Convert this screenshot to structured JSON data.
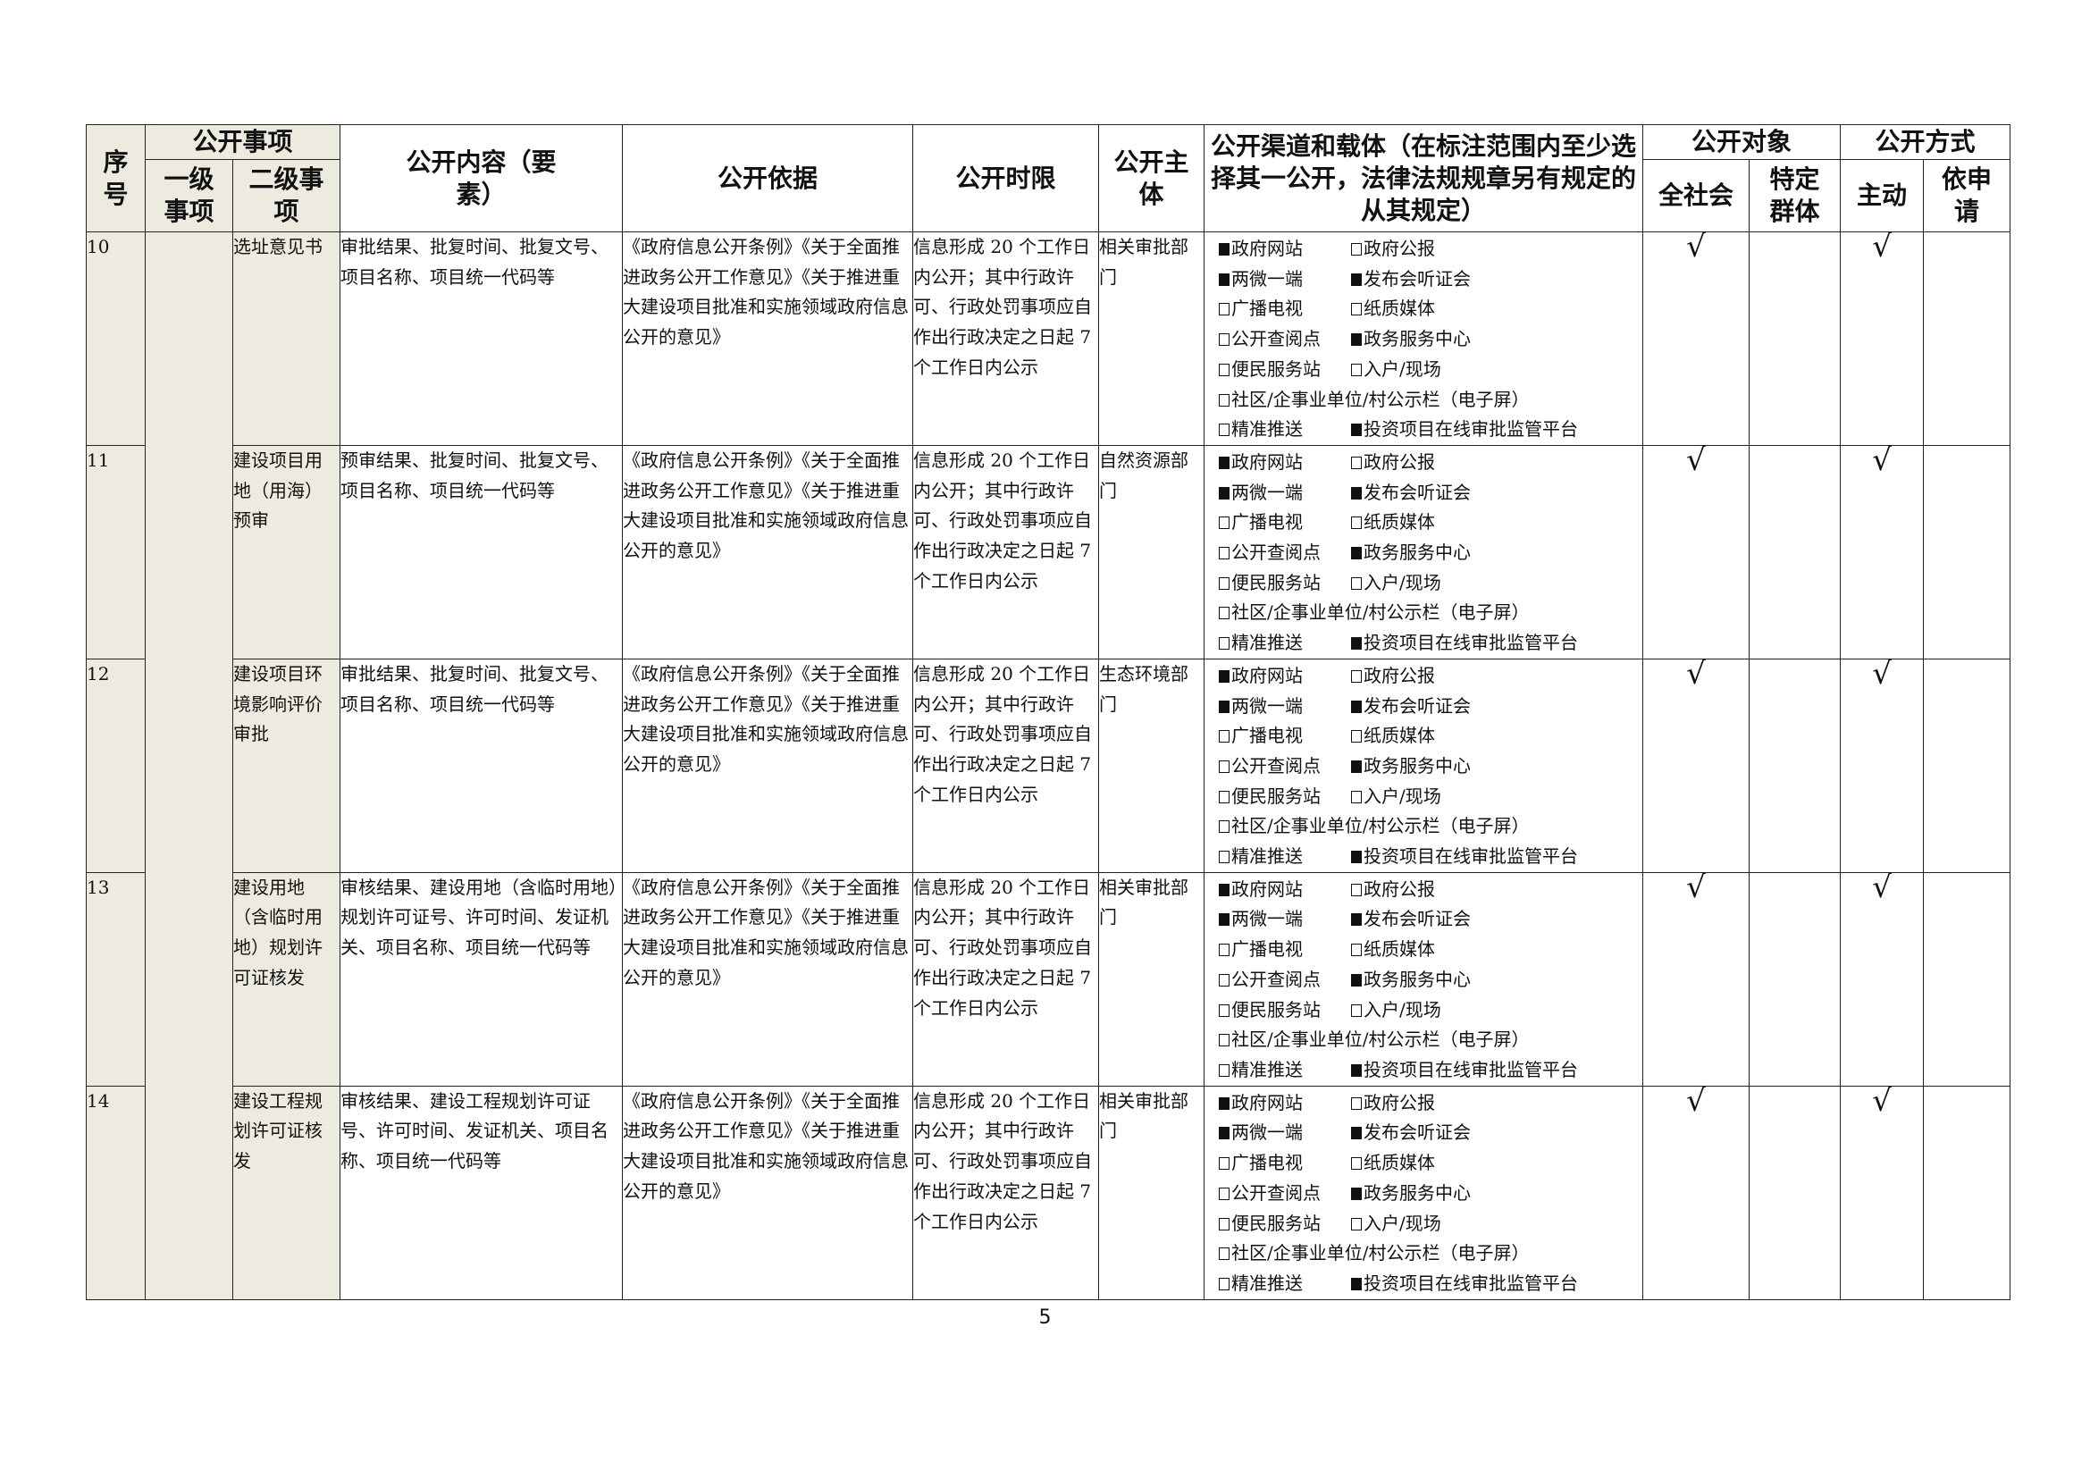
{
  "header": {
    "seq": "序号",
    "matter_group": "公开事项",
    "level1": "一级事项",
    "level2": "二级事项",
    "content": "公开内容（要素）",
    "basis": "公开依据",
    "time_limit": "公开时限",
    "subject": "公开主体",
    "channels": "公开渠道和载体（在标注范围内至少选择其一公开，法律法规规章另有规定的从其规定）",
    "audience_group": "公开对象",
    "audience_all": "全社会",
    "audience_specific": "特定群体",
    "mode_group": "公开方式",
    "mode_active": "主动",
    "mode_request": "依申请"
  },
  "rows": [
    {
      "seq": "10",
      "level1": "",
      "level2": "选址意见书",
      "content": "审批结果、批复时间、批复文号、项目名称、项目统一代码等",
      "basis": "《政府信息公开条例》《关于全面推进政务公开工作意见》《关于推进重大建设项目批准和实施领域政府信息公开的意见》",
      "time_limit": "信息形成 20 个工作日内公开；其中行政许可、行政处罚事项应自作出行政决定之日起 7 个工作日内公示",
      "subject": "相关审批部门",
      "audience_all": "√",
      "audience_specific": "",
      "mode_active": "√",
      "mode_request": ""
    },
    {
      "seq": "11",
      "level1": "",
      "level2": "建设项目用地（用海）预审",
      "content": "预审结果、批复时间、批复文号、项目名称、项目统一代码等",
      "basis": "《政府信息公开条例》《关于全面推进政务公开工作意见》《关于推进重大建设项目批准和实施领域政府信息公开的意见》",
      "time_limit": "信息形成 20 个工作日内公开；其中行政许可、行政处罚事项应自作出行政决定之日起 7 个工作日内公示",
      "subject": "自然资源部门",
      "audience_all": "√",
      "audience_specific": "",
      "mode_active": "√",
      "mode_request": ""
    },
    {
      "seq": "12",
      "level1": "",
      "level2": "建设项目环境影响评价审批",
      "content": "审批结果、批复时间、批复文号、项目名称、项目统一代码等",
      "basis": "《政府信息公开条例》《关于全面推进政务公开工作意见》《关于推进重大建设项目批准和实施领域政府信息公开的意见》",
      "time_limit": "信息形成 20 个工作日内公开；其中行政许可、行政处罚事项应自作出行政决定之日起 7 个工作日内公示",
      "subject": "生态环境部门",
      "audience_all": "√",
      "audience_specific": "",
      "mode_active": "√",
      "mode_request": ""
    },
    {
      "seq": "13",
      "level1": "",
      "level2": "建设用地（含临时用地）规划许可证核发",
      "content": "审核结果、建设用地（含临时用地）规划许可证号、许可时间、发证机关、项目名称、项目统一代码等",
      "basis": "《政府信息公开条例》《关于全面推进政务公开工作意见》《关于推进重大建设项目批准和实施领域政府信息公开的意见》",
      "time_limit": "信息形成 20 个工作日内公开；其中行政许可、行政处罚事项应自作出行政决定之日起 7 个工作日内公示",
      "subject": "相关审批部门",
      "audience_all": "√",
      "audience_specific": "",
      "mode_active": "√",
      "mode_request": ""
    },
    {
      "seq": "14",
      "level1": "",
      "level2": "建设工程规划许可证核发",
      "content": "审核结果、建设工程规划许可证号、许可时间、发证机关、项目名称、项目统一代码等",
      "basis": "《政府信息公开条例》《关于全面推进政务公开工作意见》《关于推进重大建设项目批准和实施领域政府信息公开的意见》",
      "time_limit": "信息形成 20 个工作日内公开；其中行政许可、行政处罚事项应自作出行政决定之日起 7 个工作日内公示",
      "subject": "相关审批部门",
      "audience_all": "√",
      "audience_specific": "",
      "mode_active": "√",
      "mode_request": ""
    }
  ],
  "channels": [
    {
      "label": "政府网站",
      "checked": true
    },
    {
      "label": "政府公报",
      "checked": false
    },
    {
      "label": "两微一端",
      "checked": true
    },
    {
      "label": "发布会听证会",
      "checked": true
    },
    {
      "label": "广播电视",
      "checked": false
    },
    {
      "label": "纸质媒体",
      "checked": false
    },
    {
      "label": "公开查阅点",
      "checked": false
    },
    {
      "label": "政务服务中心",
      "checked": true
    },
    {
      "label": "便民服务站",
      "checked": false
    },
    {
      "label": "入户/现场",
      "checked": false
    },
    {
      "label": "社区/企事业单位/村公示栏（电子屏）",
      "checked": false,
      "full": true
    },
    {
      "label": "精准推送",
      "checked": false
    },
    {
      "label": "投资项目在线审批监管平台",
      "checked": true
    }
  ],
  "page_number": "5"
}
